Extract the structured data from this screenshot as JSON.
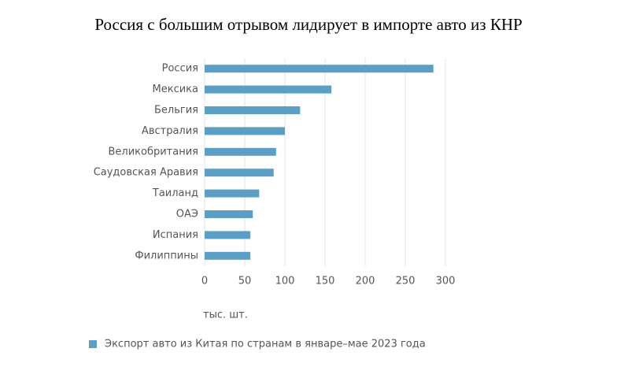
{
  "chart_data": {
    "type": "bar",
    "title": "Россия с большим отрывом лидирует в импорте авто из КНР",
    "categories": [
      "Россия",
      "Мексика",
      "Бельгия",
      "Австралия",
      "Великобритания",
      "Саудовская Аравия",
      "Таиланд",
      "ОАЭ",
      "Испания",
      "Филиппины"
    ],
    "series": [
      {
        "name": "Экспорт авто из Китая по странам в январе–мае 2023 года",
        "color": "#5b9fc4",
        "values": [
          285,
          158,
          119,
          100,
          89,
          86,
          68,
          60,
          57,
          57
        ]
      }
    ],
    "x_label": "тыс. шт.",
    "xlim": [
      0,
      300
    ],
    "xticks": [
      0,
      50,
      100,
      150,
      200,
      250,
      300
    ],
    "grid": true
  }
}
